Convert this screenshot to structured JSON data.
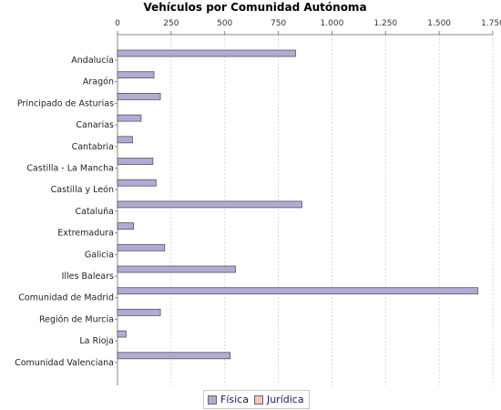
{
  "chart_data": {
    "type": "bar",
    "orientation": "horizontal",
    "title": "Vehículos por Comunidad Autónoma",
    "categories": [
      "Andalucía",
      "Aragón",
      "Principado de Asturias",
      "Canarias",
      "Cantabria",
      "Castilla - La Mancha",
      "Castilla y León",
      "Cataluña",
      "Extremadura",
      "Galicia",
      "Illes Balears",
      "Comunidad de Madrid",
      "Región de Murcia",
      "La Rioja",
      "Comunidad Valenciana"
    ],
    "series": [
      {
        "name": "Física",
        "color": "#b3a9d6",
        "values": [
          830,
          170,
          200,
          110,
          70,
          165,
          180,
          860,
          75,
          220,
          550,
          1680,
          200,
          40,
          525
        ]
      },
      {
        "name": "Jurídica",
        "color": "#f9c3c3",
        "values": [
          0,
          0,
          0,
          0,
          0,
          0,
          0,
          0,
          0,
          0,
          0,
          0,
          0,
          0,
          0
        ]
      }
    ],
    "xlim": [
      0,
      1750
    ],
    "xticks": [
      0,
      250,
      500,
      750,
      1000,
      1250,
      1500,
      1750
    ],
    "xtick_labels": [
      "0",
      "250",
      "500",
      "750",
      "1.000",
      "1.250",
      "1.500",
      "1.750"
    ],
    "xaxis_position": "top",
    "grid": true,
    "legend_position": "bottom"
  }
}
